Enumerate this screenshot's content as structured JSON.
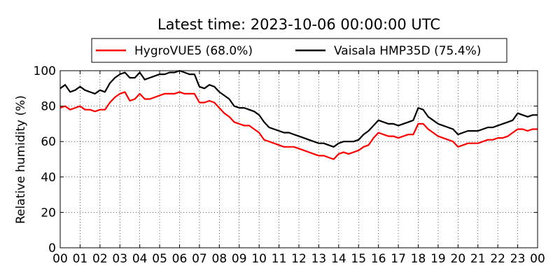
{
  "chart_data": {
    "type": "line",
    "title": "Latest time: 2023-10-06 00:00:00 UTC",
    "xlabel": "",
    "ylabel": "Relative humidity (%)",
    "xlim": [
      0,
      24
    ],
    "ylim": [
      0,
      100
    ],
    "grid": true,
    "legend_position": "top-center",
    "x_tick_labels": [
      "00",
      "01",
      "02",
      "03",
      "04",
      "05",
      "06",
      "07",
      "08",
      "09",
      "10",
      "11",
      "12",
      "13",
      "14",
      "15",
      "16",
      "17",
      "18",
      "19",
      "20",
      "21",
      "22",
      "23",
      "00"
    ],
    "y_tick_labels": [
      "0",
      "20",
      "40",
      "60",
      "80",
      "100"
    ],
    "x": [
      0,
      0.25,
      0.5,
      0.75,
      1,
      1.25,
      1.5,
      1.75,
      2,
      2.25,
      2.5,
      2.75,
      3,
      3.25,
      3.5,
      3.75,
      4,
      4.25,
      4.5,
      4.75,
      5,
      5.25,
      5.5,
      5.75,
      6,
      6.25,
      6.5,
      6.75,
      7,
      7.25,
      7.5,
      7.75,
      8,
      8.25,
      8.5,
      8.75,
      9,
      9.25,
      9.5,
      9.75,
      10,
      10.25,
      10.5,
      10.75,
      11,
      11.25,
      11.5,
      11.75,
      12,
      12.25,
      12.5,
      12.75,
      13,
      13.25,
      13.5,
      13.75,
      14,
      14.25,
      14.5,
      14.75,
      15,
      15.25,
      15.5,
      15.75,
      16,
      16.25,
      16.5,
      16.75,
      17,
      17.25,
      17.5,
      17.75,
      18,
      18.25,
      18.5,
      18.75,
      19,
      19.25,
      19.5,
      19.75,
      20,
      20.25,
      20.5,
      20.75,
      21,
      21.25,
      21.5,
      21.75,
      22,
      22.25,
      22.5,
      22.75,
      23,
      23.25,
      23.5,
      23.75,
      24
    ],
    "series": [
      {
        "name": "HygroVUE5 (68.0%)",
        "color": "#ff0000",
        "values": [
          79,
          80,
          78,
          79,
          80,
          78,
          78,
          77,
          78,
          78,
          82,
          85,
          87,
          88,
          83,
          84,
          87,
          84,
          84,
          85,
          86,
          87,
          87,
          87,
          88,
          87,
          87,
          87,
          82,
          82,
          83,
          82,
          79,
          76,
          74,
          71,
          70,
          69,
          69,
          67,
          65,
          61,
          60,
          59,
          58,
          57,
          57,
          57,
          56,
          55,
          54,
          53,
          52,
          52,
          51,
          50,
          53,
          54,
          53,
          54,
          55,
          57,
          58,
          62,
          65,
          64,
          63,
          63,
          62,
          63,
          64,
          64,
          70,
          70,
          67,
          65,
          63,
          62,
          61,
          60,
          57,
          58,
          59,
          59,
          59,
          60,
          61,
          61,
          62,
          62,
          63,
          65,
          67,
          67,
          66,
          67,
          67
        ]
      },
      {
        "name": "Vaisala HMP35D (75.4%)",
        "color": "#000000",
        "values": [
          90,
          92,
          88,
          89,
          91,
          89,
          88,
          87,
          89,
          88,
          93,
          96,
          98,
          99,
          96,
          96,
          99,
          95,
          96,
          97,
          98,
          98,
          99,
          99,
          100,
          99,
          98,
          98,
          91,
          90,
          92,
          91,
          88,
          86,
          84,
          80,
          79,
          79,
          78,
          77,
          75,
          71,
          68,
          67,
          66,
          65,
          65,
          64,
          63,
          62,
          61,
          60,
          59,
          59,
          58,
          57,
          59,
          60,
          60,
          60,
          61,
          64,
          66,
          69,
          72,
          71,
          70,
          70,
          69,
          70,
          71,
          72,
          79,
          78,
          74,
          72,
          70,
          69,
          68,
          67,
          64,
          65,
          66,
          66,
          66,
          67,
          68,
          68,
          69,
          70,
          71,
          72,
          76,
          75,
          74,
          75,
          75
        ]
      }
    ]
  }
}
